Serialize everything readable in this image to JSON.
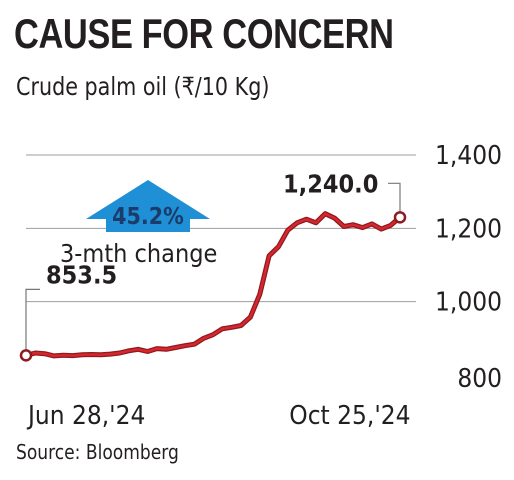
{
  "title": "CAUSE FOR CONCERN",
  "subtitle": "Crude palm oil  (₹/10 Kg)",
  "source": "Source: Bloomberg",
  "colors": {
    "line": "#d6262e",
    "line_edge": "#8e1a1f",
    "arrow": "#1f8fd6",
    "grid": "#9e9e9e"
  },
  "chart_data": {
    "type": "line",
    "title": "CAUSE FOR CONCERN",
    "ylabel": "₹/10 Kg",
    "ylim": [
      800,
      1400
    ],
    "yticks": [
      800,
      1000,
      1200,
      1400
    ],
    "ytick_labels": [
      "800",
      "1,000",
      "1,200",
      "1,400"
    ],
    "xlim": [
      0,
      20
    ],
    "xtick_labels": [
      "Jun 28,'24",
      "Oct 25,'24"
    ],
    "xtick_positions": [
      0,
      17
    ],
    "series": [
      {
        "x": [
          0,
          0.5,
          1,
          1.5,
          2,
          2.5,
          3,
          3.5,
          4,
          4.5,
          5,
          5.5,
          6,
          6.5,
          7,
          7.5,
          8,
          8.5,
          9,
          9.5,
          10,
          10.5,
          11,
          11.5,
          12,
          12.5,
          13,
          13.5,
          14,
          14.5,
          15,
          15.5,
          16,
          16.5,
          17,
          17.5,
          18,
          18.5,
          19,
          19.5,
          20
        ],
        "values": [
          853.5,
          860,
          858,
          852,
          854,
          853,
          855,
          856,
          855,
          857,
          860,
          866,
          870,
          864,
          872,
          870,
          875,
          880,
          884,
          900,
          910,
          926,
          930,
          935,
          958,
          1020,
          1125,
          1150,
          1195,
          1215,
          1225,
          1215,
          1240,
          1228,
          1205,
          1210,
          1202,
          1212,
          1198,
          1208,
          1230
        ]
      }
    ],
    "annotations": {
      "start_value": "853.5",
      "peak_value": "1,240.0",
      "change_pct": "45.2%",
      "change_label": "3-mth change"
    }
  }
}
